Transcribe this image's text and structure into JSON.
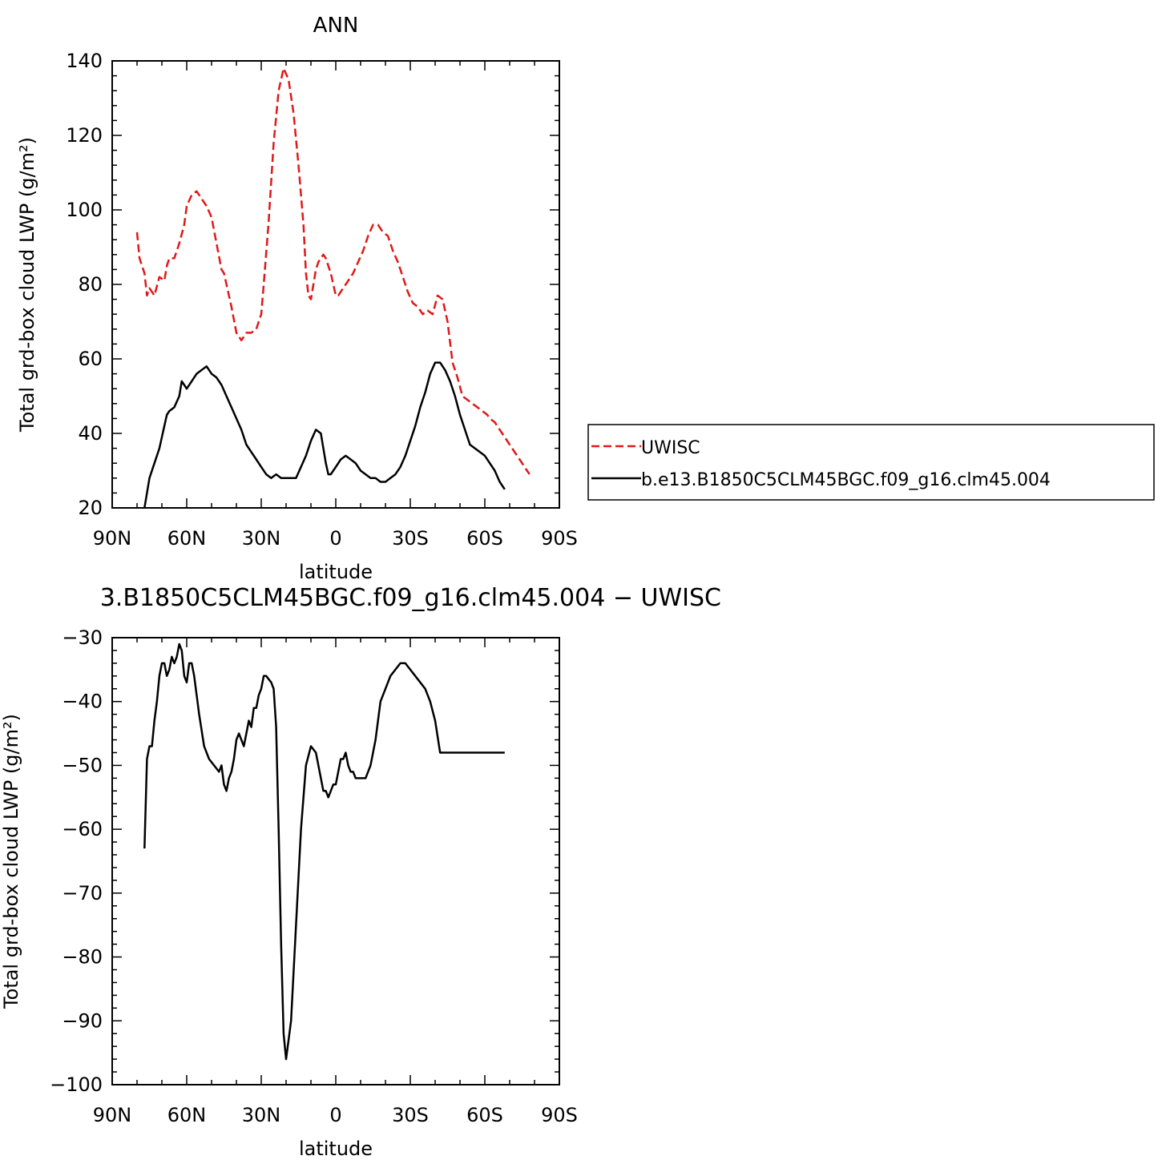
{
  "chart_data": [
    {
      "type": "line",
      "title": "ANN",
      "xlabel": "latitude",
      "ylabel": "Total grd-box cloud LWP (g/m²)",
      "xlim": [
        90,
        -90
      ],
      "ylim": [
        20,
        140
      ],
      "xticks": [
        90,
        60,
        30,
        0,
        -30,
        -60,
        -90
      ],
      "xtick_labels": [
        "90N",
        "60N",
        "30N",
        "0",
        "30S",
        "60S",
        "90S"
      ],
      "yticks": [
        20,
        40,
        60,
        80,
        100,
        120,
        140
      ],
      "ytick_labels": [
        "20",
        "40",
        "60",
        "80",
        "100",
        "120",
        "140"
      ],
      "legend_placement": "right",
      "series": [
        {
          "name": "UWISC",
          "color": "#e01818",
          "dash": "dashed",
          "x": [
            80,
            79,
            77,
            76,
            75,
            73,
            71,
            69,
            68,
            67,
            65,
            63,
            61,
            60,
            58,
            56,
            54,
            52,
            50,
            48,
            46,
            45,
            44,
            42,
            40,
            38,
            36,
            34,
            32,
            30,
            29,
            27,
            25,
            23,
            21,
            19,
            17,
            15,
            13,
            12,
            11,
            10,
            9,
            8,
            7,
            6,
            5,
            4,
            3,
            2,
            1,
            0,
            -1,
            -2,
            -3,
            -5,
            -7,
            -9,
            -11,
            -13,
            -15,
            -17,
            -19,
            -21,
            -23,
            -25,
            -27,
            -29,
            -31,
            -33,
            -35,
            -37,
            -39,
            -41,
            -43,
            -45,
            -47,
            -49,
            -51,
            -53,
            -55,
            -57,
            -59,
            -61,
            -62,
            -64,
            -65,
            -66,
            -67,
            -68,
            -69,
            -70,
            -71,
            -72,
            -73,
            -74,
            -75,
            -76,
            -77,
            -78
          ],
          "values": [
            94,
            87,
            83,
            77,
            79,
            77,
            82,
            81,
            85,
            87,
            87,
            91,
            96,
            101,
            104,
            105,
            103,
            101,
            98,
            91,
            84,
            83,
            80,
            74,
            67,
            65,
            67,
            67,
            68,
            72,
            80,
            97,
            118,
            132,
            138,
            135,
            126,
            112,
            96,
            83,
            77,
            76,
            80,
            84,
            86,
            87,
            88,
            87,
            85,
            83,
            80,
            77,
            77,
            78,
            79,
            81,
            83,
            86,
            89,
            93,
            96,
            96,
            94,
            93,
            89,
            86,
            82,
            78,
            75,
            74,
            72,
            73,
            72,
            77,
            76,
            70,
            59,
            55,
            50,
            49,
            48,
            47,
            46,
            45,
            44,
            43,
            42,
            41,
            40,
            39,
            38,
            37,
            36,
            35,
            34,
            33,
            32,
            31,
            30,
            29
          ]
        },
        {
          "name": "b.e13.B1850C5CLM45BGC.f09_g16.clm45.004",
          "color": "#000000",
          "dash": "solid",
          "x": [
            77,
            75,
            73,
            71,
            70,
            69,
            68,
            67,
            65,
            63,
            62,
            61,
            60,
            58,
            56,
            54,
            52,
            50,
            48,
            46,
            44,
            42,
            40,
            38,
            36,
            34,
            32,
            30,
            28,
            26,
            24,
            22,
            20,
            18,
            16,
            14,
            12,
            10,
            8,
            6,
            5,
            4,
            3,
            2,
            1,
            0,
            -2,
            -4,
            -6,
            -8,
            -10,
            -12,
            -14,
            -16,
            -18,
            -20,
            -22,
            -24,
            -26,
            -28,
            -30,
            -32,
            -34,
            -36,
            -38,
            -40,
            -42,
            -44,
            -46,
            -48,
            -50,
            -52,
            -54,
            -56,
            -58,
            -60,
            -62,
            -64,
            -66,
            -68
          ],
          "values": [
            20,
            28,
            32,
            36,
            39,
            42,
            45,
            46,
            47,
            50,
            54,
            53,
            52,
            54,
            56,
            57,
            58,
            56,
            55,
            53,
            50,
            47,
            44,
            41,
            37,
            35,
            33,
            31,
            29,
            28,
            29,
            28,
            28,
            28,
            28,
            31,
            34,
            38,
            41,
            40,
            36,
            32,
            29,
            29,
            30,
            31,
            33,
            34,
            33,
            32,
            30,
            29,
            28,
            28,
            27,
            27,
            28,
            29,
            31,
            34,
            38,
            42,
            47,
            51,
            56,
            59,
            59,
            57,
            54,
            50,
            45,
            41,
            37,
            36,
            35,
            34,
            32,
            30,
            27,
            25
          ]
        }
      ]
    },
    {
      "type": "line",
      "title": "3.B1850C5CLM45BGC.f09_g16.clm45.004  −  UWISC",
      "xlabel": "latitude",
      "ylabel": "Total grd-box cloud LWP (g/m²)",
      "xlim": [
        90,
        -90
      ],
      "ylim": [
        -100,
        -30
      ],
      "xticks": [
        90,
        60,
        30,
        0,
        -30,
        -60,
        -90
      ],
      "xtick_labels": [
        "90N",
        "60N",
        "30N",
        "0",
        "30S",
        "60S",
        "90S"
      ],
      "yticks": [
        -30,
        -40,
        -50,
        -60,
        -70,
        -80,
        -90,
        -100
      ],
      "ytick_labels": [
        "−30",
        "−40",
        "−50",
        "−60",
        "−70",
        "−80",
        "−90",
        "−100"
      ],
      "series": [
        {
          "color": "#000000",
          "dash": "solid",
          "x": [
            77,
            76,
            75,
            74,
            73,
            72,
            71,
            70,
            69,
            68,
            67,
            66,
            65,
            64,
            63,
            62,
            61,
            60,
            59,
            58,
            57,
            55,
            53,
            51,
            49,
            47,
            46,
            45,
            44,
            43,
            42,
            41,
            40,
            39,
            37,
            36,
            35,
            34,
            33,
            32,
            31,
            30,
            29,
            28,
            26,
            25,
            24,
            23,
            22,
            21,
            20,
            18,
            16,
            14,
            12,
            10,
            8,
            7,
            6,
            5,
            4,
            3,
            2,
            1,
            0,
            -1,
            -2,
            -3,
            -4,
            -5,
            -6,
            -7,
            -8,
            -9,
            -10,
            -11,
            -12,
            -13,
            -14,
            -15,
            -16,
            -17,
            -18,
            -20,
            -22,
            -24,
            -26,
            -28,
            -30,
            -32,
            -34,
            -36,
            -38,
            -40,
            -42,
            -44,
            -46,
            -48,
            -50,
            -52,
            -54,
            -56,
            -58,
            -60,
            -62,
            -64,
            -66,
            -68
          ],
          "values": [
            -63,
            -49,
            -47,
            -47,
            -43,
            -40,
            -36,
            -34,
            -34,
            -36,
            -35,
            -33,
            -34,
            -33,
            -31,
            -32,
            -36,
            -37,
            -34,
            -34,
            -36,
            -42,
            -47,
            -49,
            -50,
            -51,
            -50,
            -53,
            -54,
            -52,
            -51,
            -49,
            -46,
            -45,
            -47,
            -45,
            -43,
            -44,
            -41,
            -41,
            -39,
            -38,
            -36,
            -36,
            -37,
            -38,
            -44,
            -60,
            -78,
            -92,
            -96,
            -90,
            -75,
            -60,
            -50,
            -47,
            -48,
            -50,
            -52,
            -54,
            -54,
            -55,
            -54,
            -53,
            -53,
            -51,
            -49,
            -49,
            -48,
            -50,
            -51,
            -51,
            -52,
            -52,
            -52,
            -52,
            -52,
            -51,
            -50,
            -48,
            -46,
            -43,
            -40,
            -38,
            -36,
            -35,
            -34,
            -34,
            -35,
            -36,
            -37,
            -38,
            -40,
            -43,
            -48,
            -48,
            -48,
            -48,
            -48,
            -48,
            -48,
            -48,
            -48,
            -48,
            -48,
            -48,
            -48,
            -48
          ]
        }
      ]
    }
  ]
}
